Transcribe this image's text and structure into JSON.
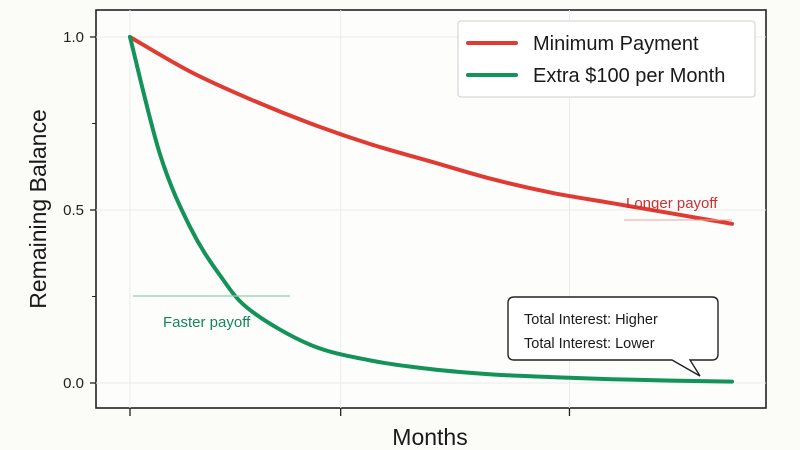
{
  "chart_data": {
    "type": "line",
    "xlabel": "Months",
    "ylabel": "Remaining Balance",
    "ylim": [
      0.0,
      1.0
    ],
    "yticks": [
      "0.0",
      "0.5",
      "1.0"
    ],
    "xticks_labeled": false,
    "grid": true,
    "legend_position": "top-right",
    "series": [
      {
        "name": "Minimum Payment",
        "color": "#e03a33",
        "x": [
          0,
          0.1,
          0.2,
          0.3,
          0.4,
          0.5,
          0.6,
          0.7,
          0.8,
          0.9,
          1.0
        ],
        "values": [
          1.0,
          0.9,
          0.82,
          0.75,
          0.69,
          0.64,
          0.59,
          0.55,
          0.52,
          0.49,
          0.46
        ]
      },
      {
        "name": "Extra $100 per Month",
        "color": "#13925a",
        "x": [
          0,
          0.05,
          0.1,
          0.15,
          0.2,
          0.3,
          0.4,
          0.5,
          0.6,
          0.7,
          0.8,
          0.9,
          1.0
        ],
        "values": [
          1.0,
          0.66,
          0.45,
          0.31,
          0.21,
          0.11,
          0.065,
          0.04,
          0.025,
          0.017,
          0.011,
          0.007,
          0.004
        ]
      }
    ],
    "annotations": {
      "longer_payoff": "Longer payoff",
      "faster_payoff": "Faster payoff",
      "callout_lines": [
        "Total Interest: Higher",
        "Total Interest: Lower"
      ]
    }
  }
}
